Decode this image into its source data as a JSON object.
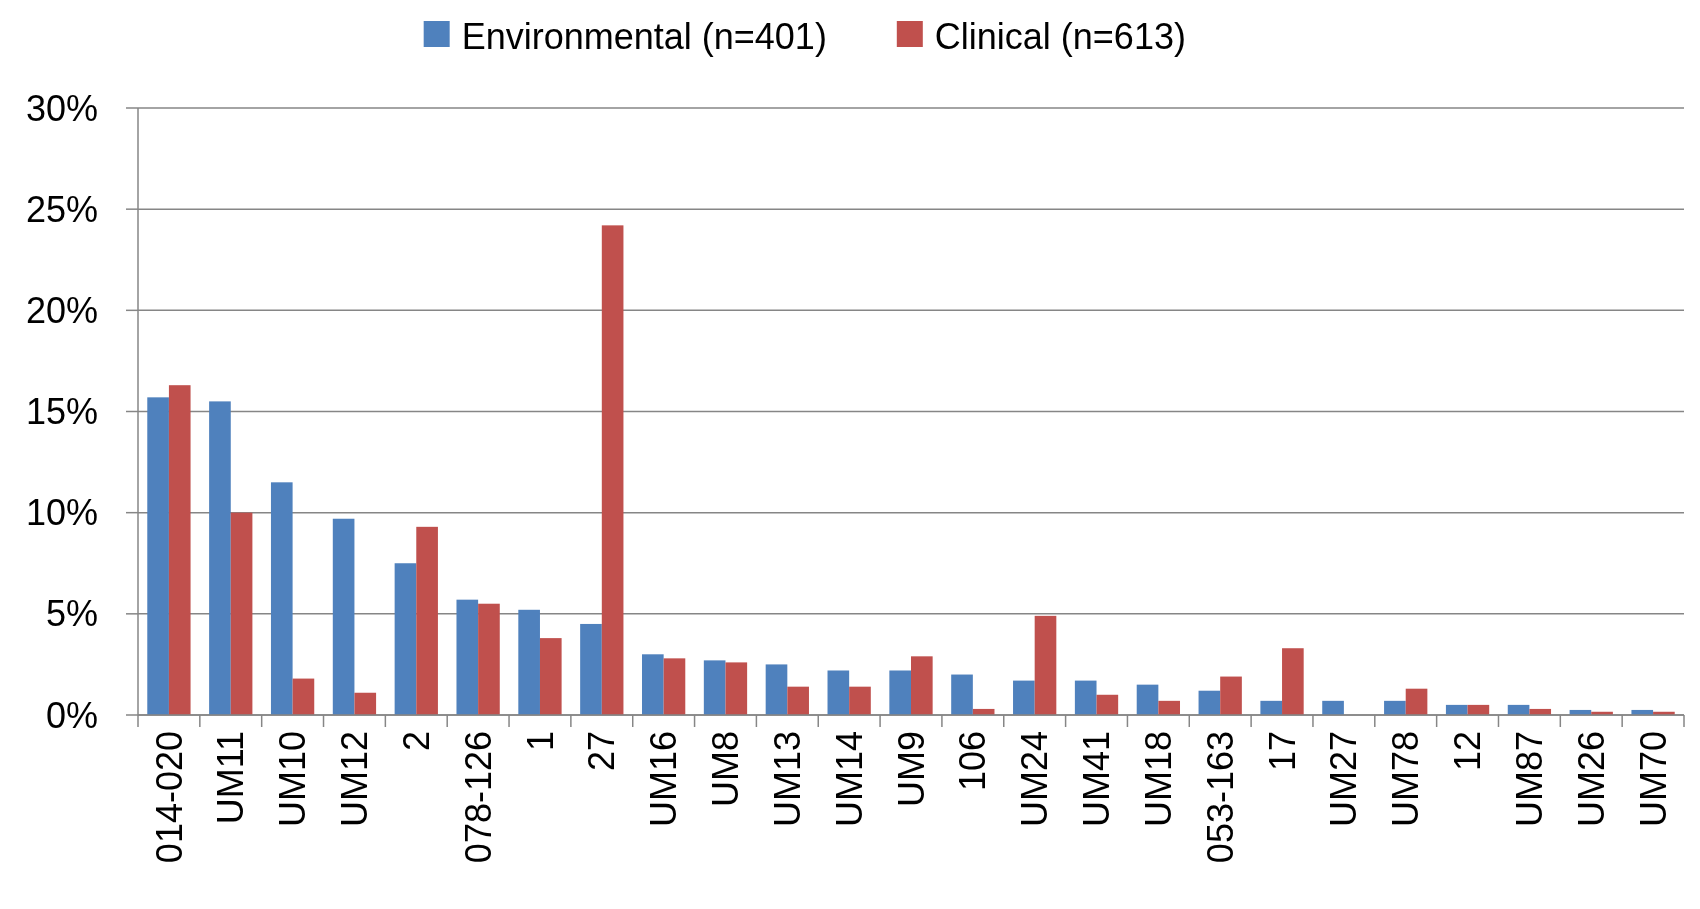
{
  "chart_data": {
    "type": "bar",
    "categories": [
      "014-020",
      "UM11",
      "UM10",
      "UM12",
      "2",
      "078-126",
      "1",
      "27",
      "UM16",
      "UM8",
      "UM13",
      "UM14",
      "UM9",
      "106",
      "UM24",
      "UM41",
      "UM18",
      "053-163",
      "17",
      "UM27",
      "UM78",
      "12",
      "UM87",
      "UM26",
      "UM70"
    ],
    "series": [
      {
        "name": "Environmental (n=401)",
        "color": "#4f81bd",
        "values": [
          15.7,
          15.5,
          11.5,
          9.7,
          7.5,
          5.7,
          5.2,
          4.5,
          3.0,
          2.7,
          2.5,
          2.2,
          2.2,
          2.0,
          1.7,
          1.7,
          1.5,
          1.2,
          0.7,
          0.7,
          0.7,
          0.5,
          0.5,
          0.25,
          0.25
        ]
      },
      {
        "name": "Clinical (n=613)",
        "color": "#c0504d",
        "values": [
          16.3,
          10.0,
          1.8,
          1.1,
          9.3,
          5.5,
          3.8,
          24.2,
          2.8,
          2.6,
          1.4,
          1.4,
          2.9,
          0.3,
          4.9,
          1.0,
          0.7,
          1.9,
          3.3,
          0,
          1.3,
          0.5,
          0.3,
          0.16,
          0.16
        ]
      }
    ],
    "ylim": [
      0,
      30
    ],
    "yticks": [
      {
        "value": 0,
        "label": "0%"
      },
      {
        "value": 5,
        "label": "5%"
      },
      {
        "value": 10,
        "label": "10%"
      },
      {
        "value": 15,
        "label": "15%"
      },
      {
        "value": 20,
        "label": "20%"
      },
      {
        "value": 25,
        "label": "25%"
      },
      {
        "value": 30,
        "label": "30%"
      }
    ],
    "grid": "y",
    "legend": "top"
  }
}
